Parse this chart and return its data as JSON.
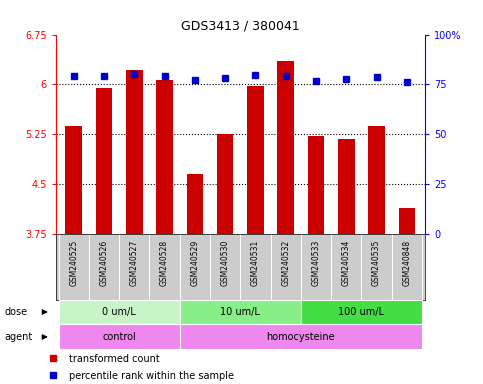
{
  "title": "GDS3413 / 380041",
  "samples": [
    "GSM240525",
    "GSM240526",
    "GSM240527",
    "GSM240528",
    "GSM240529",
    "GSM240530",
    "GSM240531",
    "GSM240532",
    "GSM240533",
    "GSM240534",
    "GSM240535",
    "GSM240848"
  ],
  "red_values": [
    5.38,
    5.95,
    6.22,
    6.06,
    4.65,
    5.25,
    5.97,
    6.35,
    5.22,
    5.18,
    5.38,
    4.15
  ],
  "blue_values_left": [
    6.12,
    6.13,
    6.15,
    6.12,
    6.07,
    6.1,
    6.14,
    6.13,
    6.05,
    6.08,
    6.11,
    6.04
  ],
  "ylim_left": [
    3.75,
    6.75
  ],
  "ylim_right": [
    0,
    100
  ],
  "yticks_left": [
    3.75,
    4.5,
    5.25,
    6.0,
    6.75
  ],
  "yticks_right": [
    0,
    25,
    50,
    75,
    100
  ],
  "ytick_labels_left": [
    "3.75",
    "4.5",
    "5.25",
    "6",
    "6.75"
  ],
  "ytick_labels_right": [
    "0",
    "25",
    "50",
    "75",
    "100%"
  ],
  "hlines": [
    4.5,
    5.25,
    6.0
  ],
  "dose_groups": [
    {
      "label": "0 um/L",
      "start": 0,
      "end": 4,
      "color": "#c8f5c8"
    },
    {
      "label": "10 um/L",
      "start": 4,
      "end": 8,
      "color": "#88ee88"
    },
    {
      "label": "100 um/L",
      "start": 8,
      "end": 12,
      "color": "#44dd44"
    }
  ],
  "agent_groups": [
    {
      "label": "control",
      "start": 0,
      "end": 4,
      "color": "#ee88ee"
    },
    {
      "label": "homocysteine",
      "start": 4,
      "end": 12,
      "color": "#ee88ee"
    }
  ],
  "bar_color": "#cc0000",
  "dot_color": "#0000cc",
  "bg_color": "#ffffff",
  "sample_bg_color": "#cccccc",
  "legend_red": "transformed count",
  "legend_blue": "percentile rank within the sample",
  "bar_width": 0.55
}
